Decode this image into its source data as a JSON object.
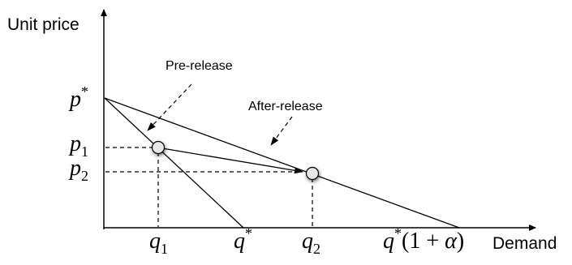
{
  "axes": {
    "y_label": "Unit price",
    "x_label": "Demand"
  },
  "price_labels": {
    "p_star": {
      "base": "p",
      "sup": "*"
    },
    "p1": {
      "base": "p",
      "sub": "1"
    },
    "p2": {
      "base": "p",
      "sub": "2"
    }
  },
  "demand_labels": {
    "q1": {
      "base": "q",
      "sub": "1"
    },
    "q_star": {
      "base": "q",
      "sup": "*"
    },
    "q2": {
      "base": "q",
      "sub": "2"
    },
    "q_alpha": {
      "base": "q",
      "sup": "*",
      "rest": "(1 + ",
      "alpha": "α",
      "close": ")"
    }
  },
  "annotations": {
    "pre_release": "Pre-release",
    "after_release": "After-release"
  },
  "colors": {
    "line": "#000000",
    "point_fill": "#e6e6e6",
    "point_shadow": "#9a9a9a"
  }
}
